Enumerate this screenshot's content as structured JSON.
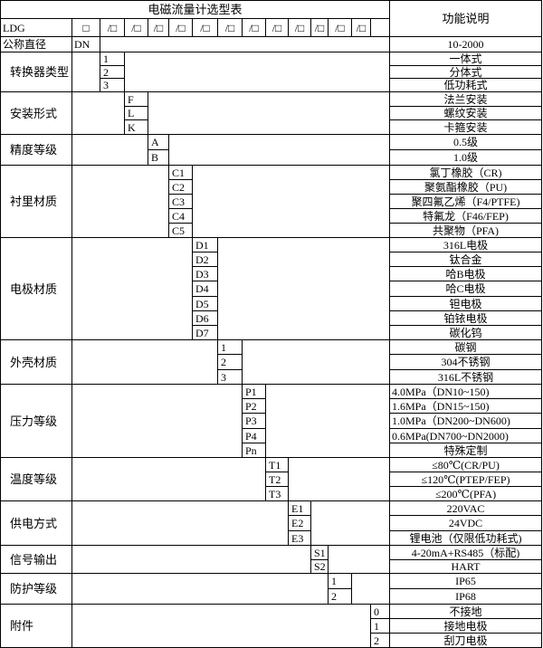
{
  "title": "电磁流量计选型表",
  "function_header": "功能说明",
  "model_row": {
    "prefix": "LDG",
    "slots": [
      "□",
      "/□",
      "/□",
      "/□",
      "/□",
      "/□",
      "/□",
      "/□",
      "/□",
      "/□",
      "/□",
      "/□",
      "/□"
    ]
  },
  "nominal_diameter": {
    "label": "公称直径",
    "code": "DN",
    "description": "10-2000"
  },
  "groups": [
    {
      "label": "转换器类型",
      "codes": [
        "1",
        "2",
        "3"
      ],
      "descriptions": [
        "一体式",
        "分体式",
        "低功耗式"
      ]
    },
    {
      "label": "安装形式",
      "codes": [
        "F",
        "L",
        "K"
      ],
      "descriptions": [
        "法兰安装",
        "螺纹安装",
        "卡箍安装"
      ]
    },
    {
      "label": "精度等级",
      "codes": [
        "A",
        "B"
      ],
      "descriptions": [
        "0.5级",
        "1.0级"
      ]
    },
    {
      "label": "衬里材质",
      "codes": [
        "C1",
        "C2",
        "C3",
        "C4",
        "C5"
      ],
      "descriptions": [
        "氯丁橡胶（CR)",
        "聚氨酯橡胶（PU)",
        "聚四氟乙烯（F4/PTFE)",
        "特氟龙（F46/FEP)",
        "共聚物（PFA)"
      ]
    },
    {
      "label": "电极材质",
      "codes": [
        "D1",
        "D2",
        "D3",
        "D4",
        "D5",
        "D6",
        "D7"
      ],
      "descriptions": [
        "316L电极",
        "钛合金",
        "哈B电极",
        "哈C电极",
        "钽电极",
        "铂铱电极",
        "碳化钨"
      ]
    },
    {
      "label": "外壳材质",
      "codes": [
        "1",
        "2",
        "3"
      ],
      "descriptions": [
        "碳钢",
        "304不锈钢",
        "316L不锈钢"
      ]
    },
    {
      "label": "压力等级",
      "codes": [
        "P1",
        "P2",
        "P3",
        "P4",
        "Pn"
      ],
      "descriptions": [
        "4.0MPa（DN10~150)",
        "1.6MPa（DN15~150)",
        "1.0MPa（DN200~DN600)",
        "0.6MPa(DN700~DN2000)",
        "特殊定制"
      ]
    },
    {
      "label": "温度等级",
      "codes": [
        "T1",
        "T2",
        "T3"
      ],
      "descriptions": [
        "≤80℃(CR/PU)",
        "≤120℃(PTEP/FEP)",
        "≤200℃(PFA)"
      ]
    },
    {
      "label": "供电方式",
      "codes": [
        "E1",
        "E2",
        "E3"
      ],
      "descriptions": [
        "220VAC",
        "24VDC",
        "锂电池（仅限低功耗式)"
      ]
    },
    {
      "label": "信号输出",
      "codes": [
        "S1",
        "S2"
      ],
      "descriptions": [
        "4-20mA+RS485（标配)",
        "HART"
      ]
    },
    {
      "label": "防护等级",
      "codes": [
        "1",
        "2"
      ],
      "descriptions": [
        "IP65",
        "IP68"
      ]
    },
    {
      "label": "附件",
      "codes": [
        "0",
        "1",
        "2"
      ],
      "descriptions": [
        "不接地",
        "接地电极",
        "刮刀电极"
      ]
    }
  ]
}
